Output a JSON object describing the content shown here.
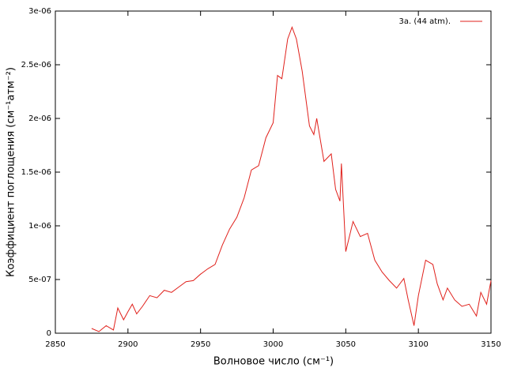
{
  "chart_data": {
    "type": "line",
    "xlabel": "Волновое число (см⁻¹)",
    "ylabel": "Коэффициент поглощения (см⁻¹атм⁻²)",
    "xlim": [
      2850,
      3150
    ],
    "xticks": [
      2850,
      2900,
      2950,
      3000,
      3050,
      3100,
      3150
    ],
    "ylim": [
      0,
      3e-06
    ],
    "yticks": [
      0,
      {
        "value": 5e-07,
        "label": "5e-07"
      },
      {
        "value": 1e-06,
        "label": "1e-06"
      },
      {
        "value": 1.5e-06,
        "label": "1.5e-06"
      },
      {
        "value": 2e-06,
        "label": "2e-06"
      },
      {
        "value": 2.5e-06,
        "label": "2.5e-06"
      },
      {
        "value": 3e-06,
        "label": "3e-06"
      }
    ],
    "legend": "top-right",
    "x": [
      2875,
      2880,
      2885,
      2890,
      2893,
      2897,
      2900,
      2903,
      2906,
      2910,
      2915,
      2920,
      2925,
      2930,
      2935,
      2940,
      2945,
      2950,
      2955,
      2960,
      2965,
      2970,
      2975,
      2980,
      2985,
      2990,
      2995,
      3000,
      3003,
      3006,
      3010,
      3013,
      3016,
      3020,
      3025,
      3028,
      3030,
      3035,
      3040,
      3043,
      3046,
      3047,
      3050,
      3055,
      3060,
      3065,
      3070,
      3075,
      3080,
      3085,
      3090,
      3093,
      3097,
      3100,
      3105,
      3110,
      3113,
      3117,
      3120,
      3125,
      3130,
      3135,
      3140,
      3143,
      3147,
      3150
    ],
    "series": [
      {
        "name": "3a. (44 atm).",
        "color": "#e0201b",
        "values": [
          4.4e-08,
          1.5e-08,
          7e-08,
          3e-08,
          2.35e-07,
          1.25e-07,
          2e-07,
          2.7e-07,
          1.8e-07,
          2.5e-07,
          3.5e-07,
          3.3e-07,
          4e-07,
          3.8e-07,
          4.3e-07,
          4.8e-07,
          4.9e-07,
          5.5e-07,
          6e-07,
          6.4e-07,
          8.2e-07,
          9.7e-07,
          1.08e-06,
          1.26e-06,
          1.52e-06,
          1.56e-06,
          1.82e-06,
          1.96e-06,
          2.4e-06,
          2.37e-06,
          2.74e-06,
          2.85e-06,
          2.74e-06,
          2.44e-06,
          1.93e-06,
          1.85e-06,
          2e-06,
          1.6e-06,
          1.67e-06,
          1.34e-06,
          1.23e-06,
          1.58e-06,
          7.6e-07,
          1.04e-06,
          9e-07,
          9.3e-07,
          6.8e-07,
          5.7e-07,
          4.9e-07,
          4.2e-07,
          5.1e-07,
          3.1e-07,
          7e-08,
          3.5e-07,
          6.8e-07,
          6.4e-07,
          4.6e-07,
          3.1e-07,
          4.2e-07,
          3.1e-07,
          2.5e-07,
          2.7e-07,
          1.6e-07,
          3.8e-07,
          2.7e-07,
          4.9e-07
        ]
      }
    ]
  }
}
